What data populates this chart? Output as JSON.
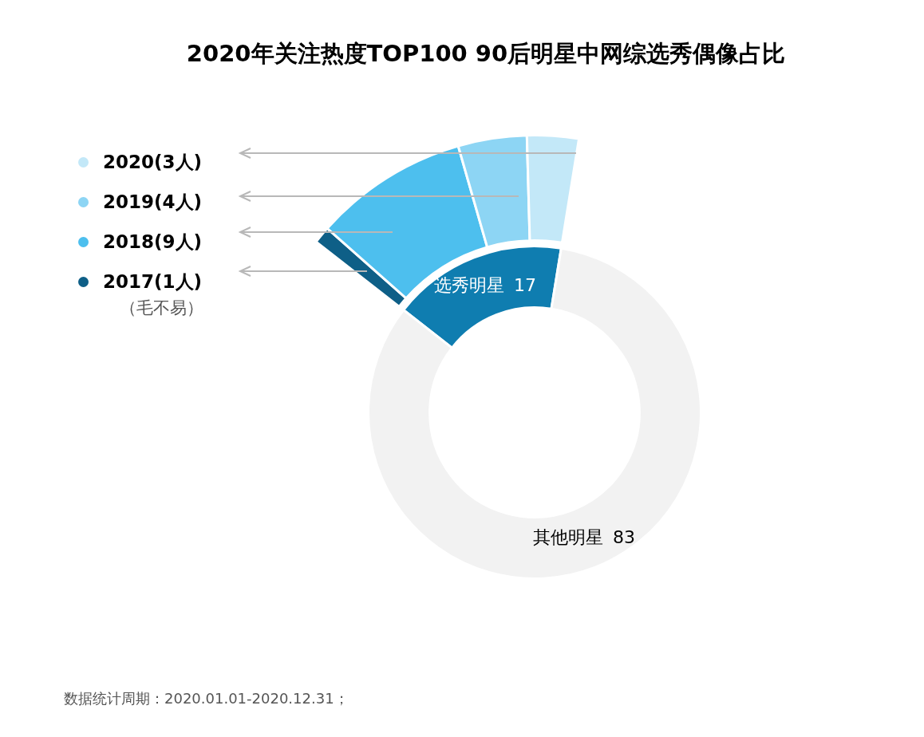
{
  "chart_data": [
    {
      "type": "donut",
      "title": "2020年关注热度TOP100 90后明星中网综选秀偶像占比",
      "categories": [
        "选秀明星",
        "其他明星"
      ],
      "values": [
        17,
        83
      ],
      "colors": [
        "#0f7db0",
        "#f2f2f2"
      ],
      "data_labels": true,
      "legend": false,
      "annotations": [
        "数据统计周期：2020.01.01-2020.12.31；"
      ]
    },
    {
      "type": "donut",
      "categories": [
        "2020(3人)",
        "2019(4人)",
        "2018(9人)",
        "2017(1人)"
      ],
      "values": [
        3,
        4,
        9,
        1
      ],
      "colors": [
        "#c3e8f8",
        "#8dd5f4",
        "#4dbfee",
        "#0e5f87"
      ],
      "legend": "left",
      "annotations": [
        "（毛不易）"
      ]
    }
  ]
}
